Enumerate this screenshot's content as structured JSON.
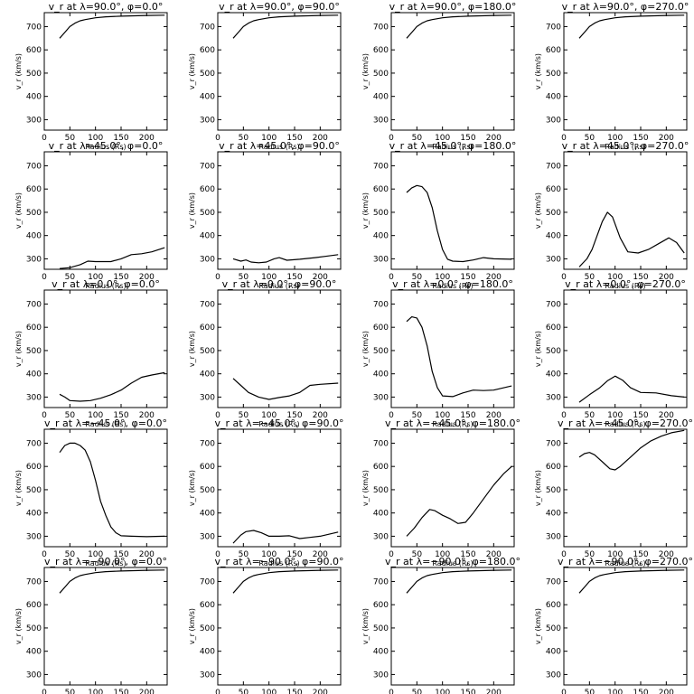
{
  "chart_data": {
    "type": "line",
    "layout": {
      "rows": 5,
      "cols": 4
    },
    "common": {
      "xlabel": "Radius (Rs)",
      "ylabel": "v_r (km/s)",
      "xlim": [
        0,
        240
      ],
      "ylim": [
        255,
        760
      ],
      "xticks": [
        0,
        50,
        100,
        150,
        200
      ],
      "yticks": [
        300,
        400,
        500,
        600,
        700
      ],
      "grid": false,
      "legend": "none",
      "line_color": "#000000"
    },
    "panels": [
      {
        "title": "v_r at λ=90.0°, φ=0.0°",
        "x": [
          30,
          40,
          50,
          60,
          70,
          80,
          100,
          120,
          150,
          200,
          235
        ],
        "y": [
          650,
          675,
          700,
          715,
          725,
          730,
          738,
          742,
          745,
          748,
          749
        ]
      },
      {
        "title": "v_r at λ=90.0°, φ=90.0°",
        "x": [
          30,
          40,
          50,
          60,
          70,
          80,
          100,
          120,
          150,
          200,
          235
        ],
        "y": [
          650,
          675,
          700,
          715,
          725,
          730,
          738,
          742,
          745,
          748,
          749
        ]
      },
      {
        "title": "v_r at λ=90.0°, φ=180.0°",
        "x": [
          30,
          40,
          50,
          60,
          70,
          80,
          100,
          120,
          150,
          200,
          235
        ],
        "y": [
          650,
          675,
          700,
          715,
          725,
          730,
          738,
          742,
          745,
          748,
          749
        ]
      },
      {
        "title": "v_r at λ=90.0°, φ=270.0°",
        "x": [
          30,
          40,
          50,
          60,
          70,
          80,
          100,
          120,
          150,
          200,
          235
        ],
        "y": [
          650,
          675,
          700,
          715,
          725,
          730,
          738,
          742,
          745,
          748,
          749
        ]
      },
      {
        "title": "v_r at λ=45.0°, φ=0.0°",
        "x": [
          30,
          50,
          70,
          85,
          100,
          130,
          150,
          170,
          190,
          210,
          235
        ],
        "y": [
          258,
          262,
          275,
          290,
          288,
          288,
          300,
          318,
          322,
          330,
          348
        ]
      },
      {
        "title": "v_r at λ=45.0°, φ=90.0°",
        "x": [
          30,
          45,
          55,
          65,
          80,
          95,
          110,
          120,
          135,
          160,
          190,
          215,
          235
        ],
        "y": [
          300,
          290,
          295,
          286,
          283,
          286,
          300,
          305,
          294,
          298,
          305,
          312,
          318
        ]
      },
      {
        "title": "v_r at λ=45.0°, φ=180.0°",
        "x": [
          30,
          40,
          50,
          60,
          70,
          80,
          90,
          100,
          110,
          120,
          140,
          160,
          180,
          200,
          235
        ],
        "y": [
          585,
          605,
          615,
          610,
          585,
          520,
          420,
          340,
          298,
          290,
          288,
          295,
          305,
          300,
          298
        ]
      },
      {
        "title": "v_r at λ=45.0°, φ=270.0°",
        "x": [
          30,
          45,
          55,
          65,
          75,
          85,
          95,
          110,
          125,
          145,
          165,
          185,
          205,
          220,
          235
        ],
        "y": [
          265,
          300,
          340,
          400,
          460,
          500,
          480,
          390,
          330,
          325,
          340,
          365,
          390,
          370,
          325
        ]
      },
      {
        "title": "v_r at λ=0.0°, φ=0.0°",
        "x": [
          30,
          40,
          50,
          70,
          90,
          110,
          130,
          150,
          170,
          190,
          210,
          235
        ],
        "y": [
          312,
          300,
          285,
          282,
          285,
          295,
          310,
          330,
          360,
          385,
          395,
          405
        ]
      },
      {
        "title": "v_r at λ=0.0°, φ=90.0°",
        "x": [
          30,
          45,
          60,
          80,
          100,
          120,
          140,
          160,
          180,
          200,
          235
        ],
        "y": [
          380,
          350,
          320,
          300,
          290,
          298,
          305,
          320,
          350,
          355,
          360
        ]
      },
      {
        "title": "v_r at λ=0.0°, φ=180.0°",
        "x": [
          30,
          40,
          50,
          60,
          70,
          80,
          90,
          100,
          120,
          140,
          160,
          180,
          200,
          235
        ],
        "y": [
          625,
          645,
          640,
          600,
          520,
          410,
          340,
          305,
          302,
          318,
          330,
          328,
          330,
          348
        ]
      },
      {
        "title": "v_r at λ=0.0°, φ=270.0°",
        "x": [
          30,
          50,
          70,
          85,
          100,
          115,
          130,
          150,
          180,
          210,
          235
        ],
        "y": [
          278,
          310,
          340,
          370,
          390,
          372,
          340,
          320,
          318,
          306,
          300
        ]
      },
      {
        "title": "v_r at λ=−45.0°, φ=0.0°",
        "x": [
          30,
          40,
          50,
          60,
          70,
          80,
          90,
          100,
          110,
          120,
          130,
          140,
          150,
          170,
          200,
          235
        ],
        "y": [
          660,
          690,
          700,
          700,
          690,
          670,
          620,
          540,
          450,
          390,
          340,
          315,
          302,
          300,
          298,
          300
        ]
      },
      {
        "title": "v_r at λ=−45.0°, φ=90.0°",
        "x": [
          30,
          45,
          55,
          70,
          85,
          100,
          120,
          140,
          160,
          180,
          200,
          235
        ],
        "y": [
          270,
          305,
          320,
          325,
          315,
          300,
          300,
          302,
          290,
          295,
          300,
          318
        ]
      },
      {
        "title": "v_r at λ=−45.0°, φ=180.0°",
        "x": [
          30,
          45,
          60,
          75,
          85,
          100,
          115,
          130,
          145,
          160,
          180,
          200,
          220,
          235
        ],
        "y": [
          300,
          335,
          380,
          415,
          410,
          390,
          375,
          355,
          360,
          400,
          460,
          520,
          570,
          600
        ]
      },
      {
        "title": "v_r at λ=−45.0°, φ=270.0°",
        "x": [
          30,
          40,
          50,
          60,
          75,
          90,
          100,
          110,
          130,
          150,
          170,
          190,
          210,
          235
        ],
        "y": [
          640,
          655,
          660,
          650,
          620,
          590,
          585,
          600,
          640,
          680,
          710,
          730,
          745,
          755
        ]
      },
      {
        "title": "v_r at λ=−90.0°, φ=0.0°",
        "x": [
          30,
          40,
          50,
          60,
          70,
          80,
          100,
          120,
          150,
          200,
          235
        ],
        "y": [
          650,
          675,
          700,
          715,
          725,
          730,
          738,
          742,
          745,
          748,
          749
        ]
      },
      {
        "title": "v_r at λ=−90.0°, φ=90.0°",
        "x": [
          30,
          40,
          50,
          60,
          70,
          80,
          100,
          120,
          150,
          200,
          235
        ],
        "y": [
          650,
          675,
          700,
          715,
          725,
          730,
          738,
          742,
          745,
          748,
          749
        ]
      },
      {
        "title": "v_r at λ=−90.0°, φ=180.0°",
        "x": [
          30,
          40,
          50,
          60,
          70,
          80,
          100,
          120,
          150,
          200,
          235
        ],
        "y": [
          650,
          675,
          700,
          715,
          725,
          730,
          738,
          742,
          745,
          748,
          749
        ]
      },
      {
        "title": "v_r at λ=−90.0°, φ=270.0°",
        "x": [
          30,
          40,
          50,
          60,
          70,
          80,
          100,
          120,
          150,
          200,
          235
        ],
        "y": [
          650,
          675,
          700,
          715,
          725,
          730,
          738,
          742,
          745,
          748,
          749
        ]
      }
    ]
  }
}
